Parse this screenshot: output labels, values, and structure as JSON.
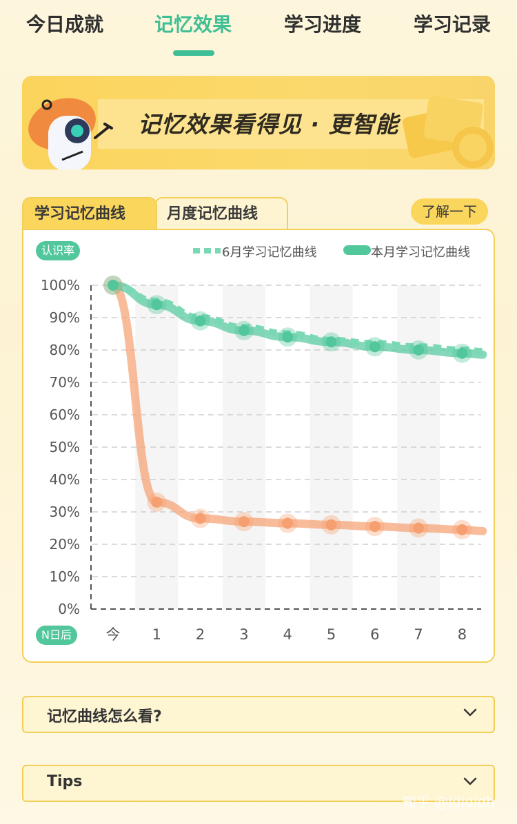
{
  "tabs": [
    {
      "label": "今日成就",
      "active": false
    },
    {
      "label": "记忆效果",
      "active": true
    },
    {
      "label": "学习进度",
      "active": false
    },
    {
      "label": "学习记录",
      "active": false
    }
  ],
  "banner": {
    "title": "记忆效果看得见 · 更智能"
  },
  "chart_tabs": [
    {
      "label": "学习记忆曲线",
      "active": true
    },
    {
      "label": "月度记忆曲线",
      "active": false
    }
  ],
  "learn_more_label": "了解一下",
  "chart_data": {
    "type": "line",
    "ylabel": "认识率",
    "xlabel": "N日后",
    "categories": [
      "今",
      "1",
      "2",
      "3",
      "4",
      "5",
      "6",
      "7",
      "8"
    ],
    "y_ticks": [
      "100%",
      "90%",
      "80%",
      "70%",
      "60%",
      "50%",
      "40%",
      "30%",
      "20%",
      "10%",
      "0%"
    ],
    "ylim": [
      0,
      100
    ],
    "grid": true,
    "legend_position": "top-right",
    "series": [
      {
        "name": "6月学习记忆曲线",
        "style": "dashed",
        "color": "#7ad9b4",
        "values": [
          100,
          95,
          90,
          87,
          85,
          83,
          82,
          81,
          80
        ]
      },
      {
        "name": "本月学习记忆曲线",
        "style": "solid",
        "color": "#52c79c",
        "values": [
          100,
          94,
          89,
          86,
          84,
          82.5,
          81,
          80,
          79
        ]
      },
      {
        "name": "",
        "style": "solid",
        "color": "#f6a071",
        "values": [
          100,
          33,
          28,
          27,
          26.5,
          26,
          25.5,
          25,
          24.5
        ]
      }
    ]
  },
  "accordions": [
    {
      "label": "记忆曲线怎么看?"
    },
    {
      "label": "Tips"
    }
  ],
  "watermark": "知乎 @jdjdjdh",
  "colors": {
    "accent": "#3fbf95",
    "yellow": "#fbd65d",
    "orange": "#f6a071"
  }
}
